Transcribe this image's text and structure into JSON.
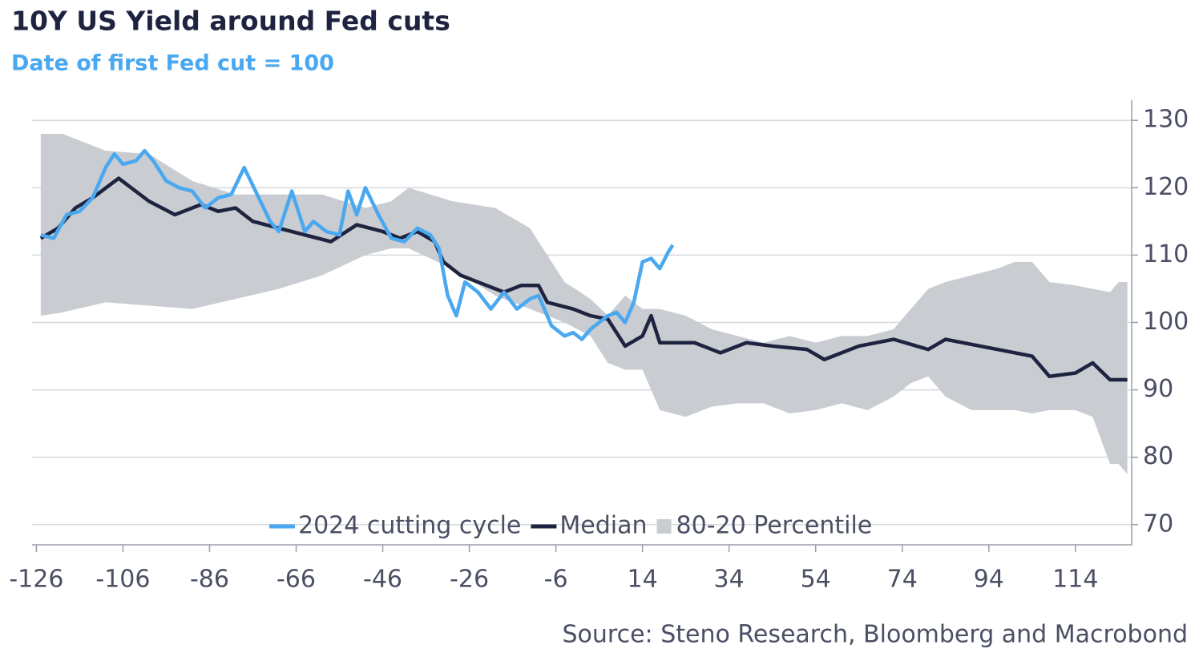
{
  "chart_data": {
    "type": "line",
    "title": "10Y US Yield around Fed cuts",
    "subtitle": "Date of first Fed cut = 100",
    "source": "Source: Steno Research, Bloomberg and Macrobond",
    "xlim": [
      -127,
      127
    ],
    "ylim": [
      67,
      133
    ],
    "xticks": [
      -126,
      -106,
      -86,
      -66,
      -46,
      -26,
      -6,
      14,
      34,
      54,
      74,
      94,
      114
    ],
    "yticks": [
      70,
      80,
      90,
      100,
      110,
      120,
      130
    ],
    "grid": true,
    "series": [
      {
        "name": "2024 cutting cycle",
        "color": "#4aa8f0",
        "x": [
          -125,
          -122,
          -119,
          -116,
          -113,
          -110,
          -108,
          -106,
          -103,
          -101,
          -99,
          -96,
          -93,
          -90,
          -87,
          -84,
          -81,
          -78,
          -75,
          -72,
          -70,
          -67,
          -64,
          -62,
          -59,
          -56,
          -54,
          -52,
          -50,
          -47,
          -44,
          -41,
          -38,
          -35,
          -33,
          -31,
          -29,
          -27,
          -24,
          -21,
          -18,
          -15,
          -12,
          -10,
          -7,
          -4,
          -2,
          0,
          2,
          4,
          6,
          8,
          10,
          12,
          14,
          16,
          18,
          20,
          21
        ],
        "values": [
          113,
          112.5,
          116,
          116.5,
          118.5,
          123,
          125,
          123.5,
          124,
          125.5,
          124,
          121,
          120,
          119.5,
          117,
          118.5,
          119,
          123,
          119,
          115,
          113.5,
          119.5,
          113.5,
          115,
          113.5,
          113,
          119.5,
          116,
          120,
          116,
          112.5,
          112,
          114,
          113,
          111,
          104,
          101,
          106,
          104.5,
          102,
          104.5,
          102,
          103.5,
          104,
          99.5,
          98,
          98.5,
          97.5,
          99,
          100,
          101,
          101.5,
          100,
          103,
          109,
          109.5,
          108,
          110.5,
          111.5
        ]
      },
      {
        "name": "Median",
        "color": "#1e2340",
        "x": [
          -125,
          -121,
          -117,
          -113,
          -107,
          -100,
          -94,
          -88,
          -84,
          -80,
          -76,
          -70,
          -64,
          -58,
          -52,
          -46,
          -42,
          -38,
          -34,
          -32,
          -28,
          -24,
          -18,
          -14,
          -10,
          -8,
          -2,
          2,
          6,
          10,
          14,
          16,
          18,
          26,
          32,
          38,
          44,
          52,
          56,
          64,
          72,
          80,
          84,
          92,
          100,
          104,
          108,
          114,
          118,
          122,
          126
        ],
        "values": [
          112.5,
          114,
          117,
          118.5,
          121.4,
          118,
          116,
          117.5,
          116.5,
          117,
          115,
          114,
          113,
          112,
          114.5,
          113.5,
          112.5,
          113.5,
          112,
          109,
          107,
          106,
          104.5,
          105.5,
          105.5,
          103,
          102,
          101,
          100.5,
          96.5,
          98,
          101,
          97,
          97,
          95.5,
          97,
          96.5,
          96,
          94.5,
          96.5,
          97.5,
          96,
          97.5,
          96.5,
          95.5,
          95,
          92,
          92.5,
          94,
          91.5,
          91.5
        ]
      },
      {
        "name": "80-20 Percentile",
        "color": "#c9ccd1",
        "x": [
          -125,
          -120,
          -110,
          -100,
          -90,
          -80,
          -70,
          -60,
          -50,
          -44,
          -40,
          -30,
          -20,
          -12,
          -4,
          2,
          6,
          10,
          14,
          18,
          24,
          30,
          36,
          42,
          48,
          54,
          60,
          66,
          72,
          76,
          80,
          84,
          90,
          96,
          100,
          104,
          108,
          114,
          118,
          122,
          124,
          126
        ],
        "lower": [
          101,
          101.5,
          103,
          102.5,
          102,
          103.5,
          105,
          107,
          110,
          111,
          111,
          108,
          104,
          102,
          100,
          98,
          94,
          93,
          93,
          87,
          86,
          87.5,
          88,
          88,
          86.5,
          87,
          88,
          87,
          89,
          91,
          92,
          89,
          87,
          87,
          87,
          86.5,
          87,
          87,
          86,
          79,
          79,
          77.5
        ],
        "upper": [
          128,
          128,
          125.5,
          125,
          121,
          119,
          119,
          119,
          117,
          118,
          120,
          118,
          117,
          114,
          106,
          103.5,
          101,
          104,
          102,
          102,
          101,
          99,
          98,
          97,
          98,
          97,
          98,
          98,
          99,
          102,
          105,
          106,
          107,
          108,
          109,
          109,
          106,
          105.5,
          105,
          104.5,
          106,
          106
        ]
      }
    ]
  }
}
